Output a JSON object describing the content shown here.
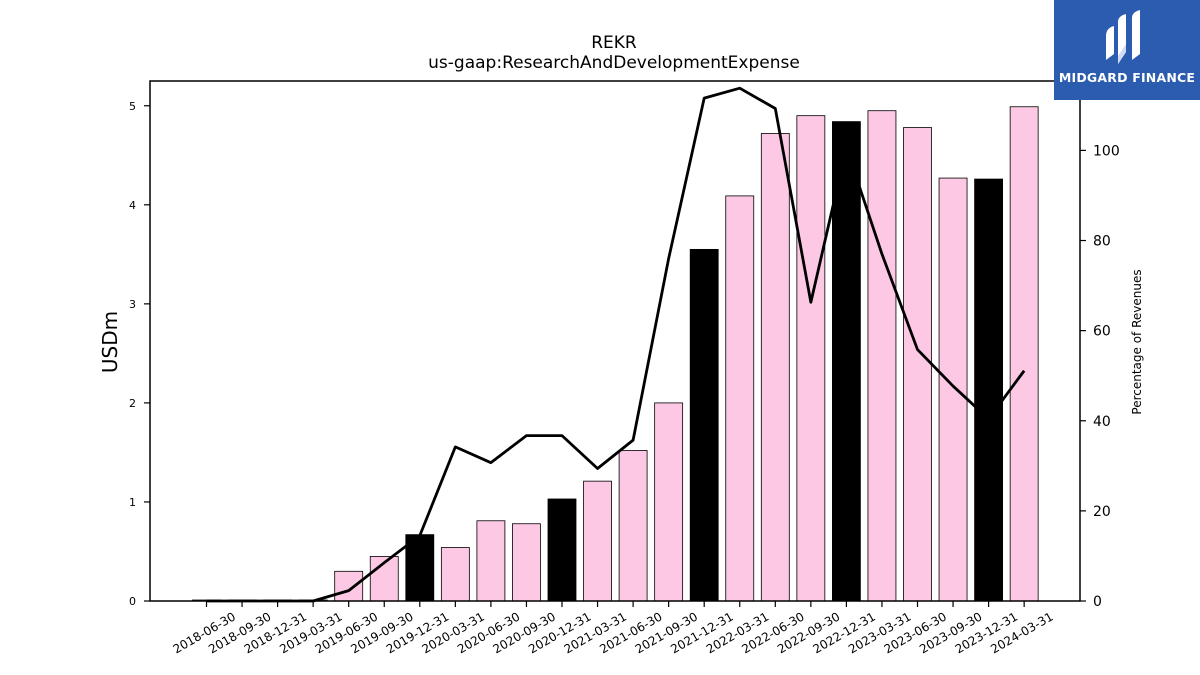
{
  "chart_data": {
    "type": "bar",
    "title": "REKR",
    "subtitle": "us-gaap:ResearchAndDevelopmentExpense",
    "ylabel": "USDm",
    "y2label": "Percentage of Revenues",
    "ylim": [
      0,
      5.25
    ],
    "y2lim": [
      0,
      115.4
    ],
    "yticks": [
      0,
      1,
      2,
      3,
      4,
      5
    ],
    "y2ticks": [
      0,
      20,
      40,
      60,
      80,
      100
    ],
    "categories": [
      "2018-06-30",
      "2018-09-30",
      "2018-12-31",
      "2019-03-31",
      "2019-06-30",
      "2019-09-30",
      "2019-12-31",
      "2020-03-31",
      "2020-06-30",
      "2020-09-30",
      "2020-12-31",
      "2021-03-31",
      "2021-06-30",
      "2021-09-30",
      "2021-12-31",
      "2022-03-31",
      "2022-06-30",
      "2022-09-30",
      "2022-12-31",
      "2023-03-31",
      "2023-06-30",
      "2023-09-30",
      "2023-12-31",
      "2024-03-31"
    ],
    "series": [
      {
        "type": "bar",
        "values": [
          0.01,
          0.01,
          0.01,
          0.01,
          0.3,
          0.45,
          0.67,
          0.54,
          0.81,
          0.78,
          1.03,
          1.21,
          1.52,
          2.0,
          3.55,
          4.09,
          4.72,
          4.9,
          4.84,
          4.95,
          4.78,
          4.27,
          4.26,
          4.99
        ],
        "quarter_end_of_year_fill": "#000000",
        "other_fill": "#fcc8e4"
      },
      {
        "type": "line",
        "axis": "right",
        "values": [
          0,
          0,
          0,
          0,
          2.3,
          8.5,
          14.5,
          34.2,
          30.7,
          36.7,
          36.7,
          29.4,
          35.7,
          76.0,
          111.6,
          113.8,
          109.3,
          66.3,
          100.6,
          77.0,
          55.8,
          47.7,
          40.4,
          51.1
        ],
        "color": "#000000"
      }
    ]
  },
  "logo": {
    "text": "MIDGARD FINANCE",
    "bg": "#2b5cb0"
  }
}
